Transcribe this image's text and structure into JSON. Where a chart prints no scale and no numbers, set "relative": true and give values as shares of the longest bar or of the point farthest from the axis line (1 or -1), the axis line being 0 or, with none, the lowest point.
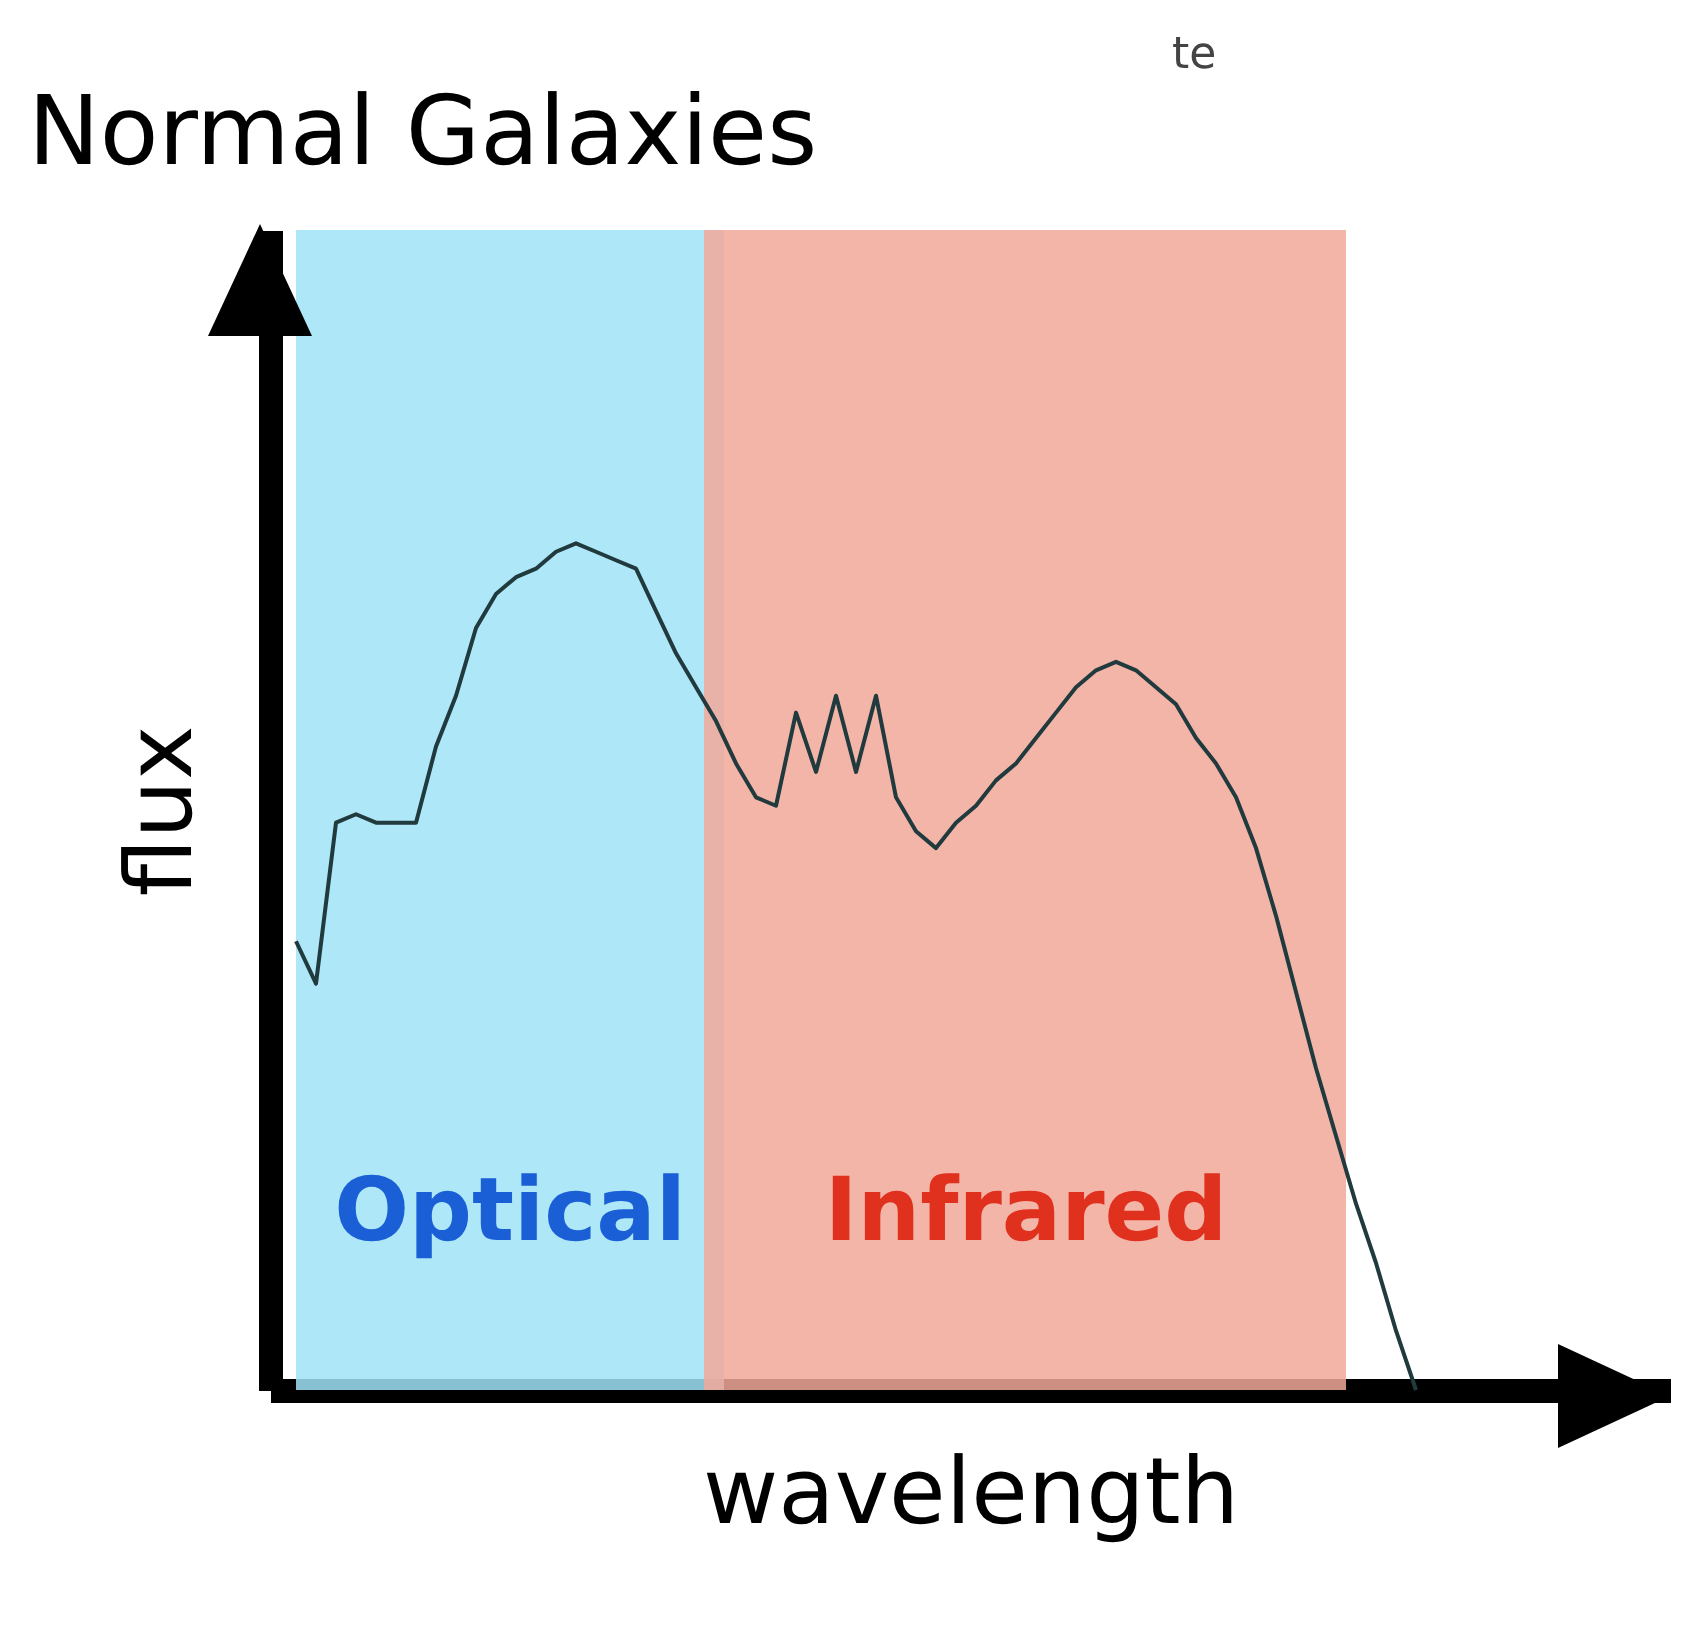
{
  "chart_data": {
    "type": "line",
    "title": "Normal Galaxies",
    "xlabel": "wavelength",
    "ylabel": "flux",
    "relative": true,
    "categories": [
      null,
      null,
      null,
      null,
      null,
      null,
      null,
      null,
      null,
      null,
      null,
      null,
      null,
      null,
      null,
      null,
      null,
      null,
      null,
      null,
      null,
      null,
      null,
      null,
      null,
      null,
      null,
      null,
      null,
      null,
      null,
      null,
      null,
      null,
      null,
      null,
      null,
      null,
      null,
      null,
      null,
      null,
      null,
      null,
      null,
      null,
      null,
      null,
      null,
      null,
      null,
      null,
      null,
      null,
      null,
      null,
      null
    ],
    "series": [
      {
        "color": "#203a3e",
        "values": [
          0.53,
          0.48,
          0.67,
          0.68,
          0.67,
          0.67,
          0.67,
          0.76,
          0.82,
          0.9,
          0.94,
          0.96,
          0.97,
          0.99,
          1.0,
          0.99,
          0.98,
          0.97,
          0.92,
          0.87,
          0.83,
          0.79,
          0.74,
          0.7,
          0.69,
          0.8,
          0.73,
          0.82,
          0.73,
          0.82,
          0.7,
          0.66,
          0.64,
          0.67,
          0.69,
          0.72,
          0.74,
          0.77,
          0.8,
          0.83,
          0.85,
          0.86,
          0.85,
          0.83,
          0.81,
          0.77,
          0.74,
          0.7,
          0.64,
          0.56,
          0.47,
          0.38,
          0.3,
          0.22,
          0.15,
          0.07,
          0
        ]
      }
    ],
    "annotations": [
      "Optical",
      "Infrared",
      "te"
    ]
  }
}
